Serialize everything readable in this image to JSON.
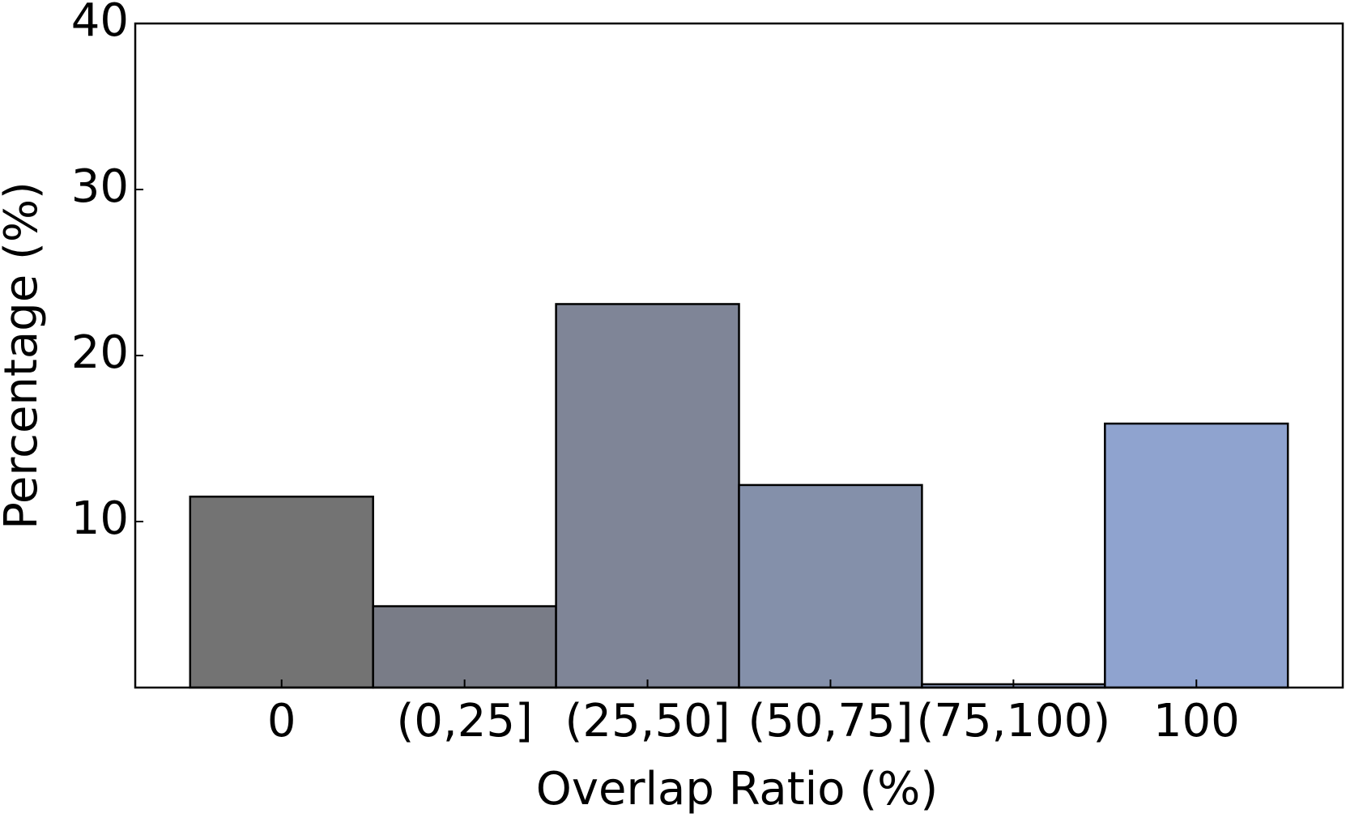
{
  "chart_data": {
    "type": "bar",
    "xlabel": "Overlap Ratio (%)",
    "ylabel": "Percentage (%)",
    "categories": [
      "0",
      "(0,25]",
      "(25,50]",
      "(50,75]",
      "(75,100)",
      "100"
    ],
    "values": [
      11.5,
      4.9,
      23.1,
      12.2,
      0.2,
      15.9
    ],
    "colors": [
      "#737373",
      "#797c87",
      "#7f8597",
      "#8490aa",
      "#8a99bc",
      "#8fa3cf"
    ],
    "ylim": [
      0,
      40
    ],
    "yticks": [
      10,
      20,
      30,
      40
    ]
  }
}
